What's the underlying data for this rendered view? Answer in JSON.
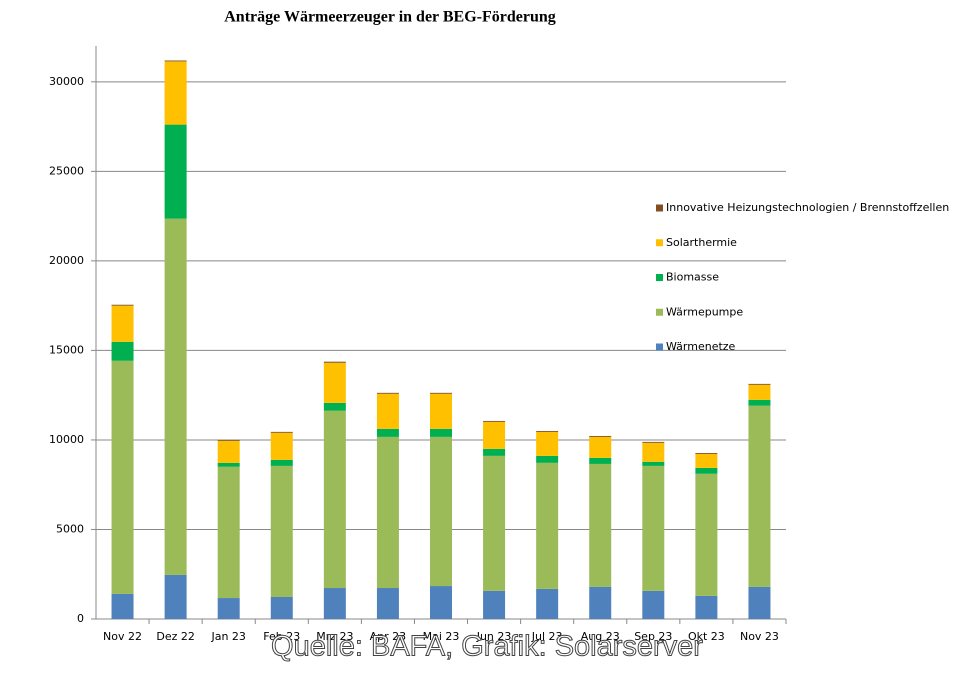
{
  "chart_data": {
    "type": "bar",
    "stacked": true,
    "title": "Anträge Wärmeerzeuger in der  BEG-Förderung",
    "annotation": "Quelle: BAFA, Grafik: Solarserver",
    "categories": [
      "Nov 22",
      "Dez 22",
      "Jan 23",
      "Feb 23",
      "Mrz 23",
      "Apr 23",
      "Mai 23",
      "Jun 23",
      "Jul 23",
      "Aug 23",
      "Sep 23",
      "Okt 23",
      "Nov 23"
    ],
    "series": [
      {
        "name": "Wärmenetze",
        "color": "#4f81bd",
        "values": [
          1400,
          2460,
          1170,
          1230,
          1730,
          1730,
          1840,
          1570,
          1680,
          1790,
          1570,
          1290,
          1790
        ]
      },
      {
        "name": "Wärmepumpe",
        "color": "#9bbb59",
        "values": [
          13020,
          19900,
          7330,
          7320,
          9900,
          8440,
          8330,
          7540,
          7040,
          6870,
          6980,
          6820,
          10120
        ]
      },
      {
        "name": "Biomasse",
        "color": "#00b050",
        "values": [
          1060,
          5250,
          220,
          340,
          440,
          450,
          450,
          390,
          390,
          340,
          230,
          330,
          330
        ]
      },
      {
        "name": "Solarthermie",
        "color": "#ffc000",
        "values": [
          2020,
          3530,
          1230,
          1510,
          2240,
          1960,
          1960,
          1510,
          1340,
          1170,
          1060,
          780,
          840
        ]
      },
      {
        "name": "Innovative Heizungstechnologien / Brennstoffzellen",
        "color": "#7f4f21",
        "values": [
          50,
          50,
          50,
          50,
          60,
          50,
          50,
          50,
          50,
          50,
          50,
          50,
          50
        ]
      }
    ],
    "ylim": [
      0,
      32000
    ],
    "yticks": [
      0,
      5000,
      10000,
      15000,
      20000,
      25000,
      30000
    ],
    "grid": true,
    "legend": "right"
  }
}
